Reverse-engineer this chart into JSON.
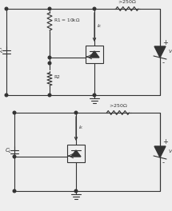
{
  "fig_width": 2.15,
  "fig_height": 2.64,
  "dpi": 100,
  "bg_color": "#eeeeee",
  "line_color": "#333333",
  "lw": 0.8
}
